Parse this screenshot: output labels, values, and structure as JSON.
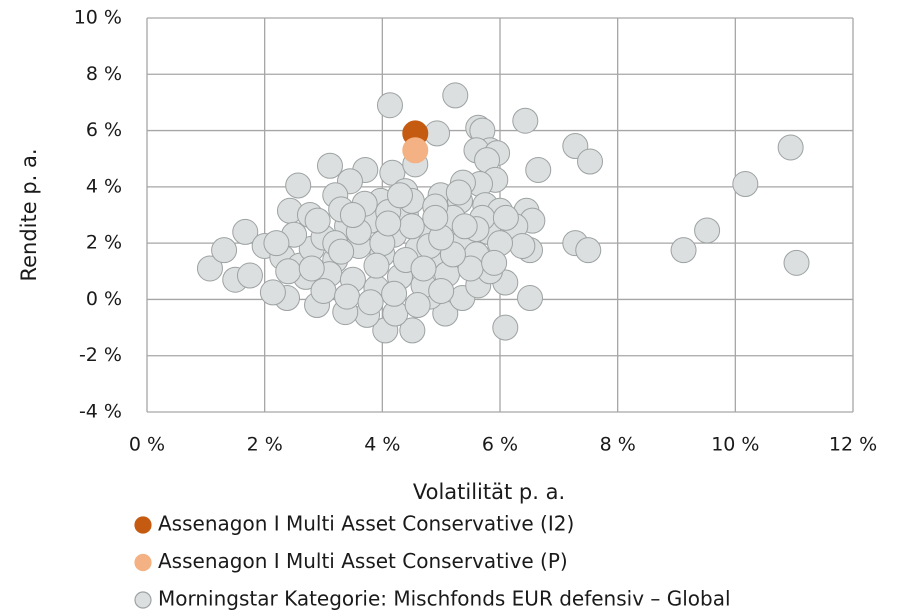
{
  "chart_data": {
    "type": "scatter",
    "xlabel": "Volatilität p. a.",
    "ylabel": "Rendite p. a.",
    "xlim": [
      0,
      12
    ],
    "ylim": [
      -4,
      10
    ],
    "xticks": [
      {
        "value": 0,
        "label": "0 %"
      },
      {
        "value": 2,
        "label": "2 %"
      },
      {
        "value": 4,
        "label": "4 %"
      },
      {
        "value": 6,
        "label": "6 %"
      },
      {
        "value": 8,
        "label": "8 %"
      },
      {
        "value": 10,
        "label": "10 %"
      },
      {
        "value": 12,
        "label": "12 %"
      }
    ],
    "yticks": [
      {
        "value": -4,
        "label": "-4 %"
      },
      {
        "value": -2,
        "label": "-2 %"
      },
      {
        "value": 0,
        "label": "0 %"
      },
      {
        "value": 2,
        "label": "2 %"
      },
      {
        "value": 4,
        "label": "4 %"
      },
      {
        "value": 6,
        "label": "6 %"
      },
      {
        "value": 8,
        "label": "8 %"
      },
      {
        "value": 10,
        "label": "10 %"
      }
    ],
    "grid": true,
    "series": [
      {
        "name": "Morningstar Kategorie: Mischfonds EUR defensiv – Global",
        "color": "#dcdfdf",
        "edgecolor": "#9da2a2",
        "x": [
          4.13,
          5.24,
          4.93,
          6.43,
          5.63,
          5.7,
          5.83,
          5.6,
          5.95,
          5.78,
          7.28,
          7.53,
          6.65,
          3.11,
          3.71,
          2.57,
          3.45,
          4.17,
          4.56,
          5.92,
          5.66,
          6.45,
          5.37,
          10.94,
          10.17,
          9.52,
          9.12,
          11.04,
          7.28,
          7.5,
          6.55,
          6.26,
          6.51,
          6.38,
          6.51,
          6.09,
          6.09,
          4.51,
          4.05,
          5.07,
          4.22,
          3.74,
          3.37,
          2.89,
          2.38,
          2.14,
          1.5,
          1.07,
          1.31,
          1.67,
          1.75,
          2.0,
          5.36,
          5.63,
          5.83,
          4.81,
          2.43,
          2.77,
          3.2,
          3.97,
          4.39,
          4.99,
          5.32,
          5.75,
          6.0,
          2.3,
          2.6,
          2.8,
          3.0,
          3.2,
          3.4,
          3.6,
          3.8,
          4.0,
          4.2,
          4.4,
          4.6,
          4.8,
          5.0,
          5.2,
          5.4,
          5.6,
          5.8,
          3.1,
          3.5,
          3.9,
          4.3,
          4.7,
          5.1,
          5.5,
          2.9,
          3.3,
          3.7,
          4.1,
          4.5,
          4.9,
          5.3,
          5.7,
          2.5,
          2.7,
          3.0,
          3.4,
          3.8,
          4.2,
          4.6,
          5.0,
          2.2,
          2.4,
          3.6,
          4.0,
          4.4,
          4.8,
          5.2,
          5.6,
          6.0,
          6.1,
          5.9,
          3.2,
          3.9,
          4.5,
          5.0,
          4.3,
          3.5,
          2.8,
          4.7,
          5.4,
          4.1,
          3.3,
          4.9
        ],
        "values": [
          6.9,
          7.25,
          5.9,
          6.35,
          6.1,
          6.0,
          5.3,
          5.3,
          5.2,
          4.95,
          5.45,
          4.9,
          4.6,
          4.75,
          4.6,
          4.05,
          4.2,
          4.5,
          4.8,
          4.25,
          4.1,
          3.15,
          4.15,
          5.4,
          4.1,
          2.45,
          1.75,
          1.3,
          2.0,
          1.75,
          2.8,
          2.6,
          1.75,
          1.9,
          0.05,
          -1.0,
          0.6,
          -1.1,
          -1.1,
          -0.5,
          -0.5,
          -0.55,
          -0.45,
          -0.2,
          0.05,
          0.25,
          0.7,
          1.1,
          1.75,
          2.4,
          0.85,
          1.9,
          0.05,
          0.5,
          1.0,
          0.1,
          3.15,
          3.0,
          3.7,
          3.5,
          3.85,
          3.7,
          3.5,
          3.35,
          3.15,
          1.5,
          1.2,
          1.8,
          2.2,
          1.4,
          2.6,
          1.9,
          2.8,
          1.6,
          2.3,
          3.0,
          1.8,
          2.5,
          1.3,
          2.9,
          2.1,
          1.6,
          2.4,
          0.9,
          0.7,
          0.4,
          0.8,
          0.5,
          0.9,
          1.1,
          2.8,
          3.2,
          3.4,
          3.1,
          3.5,
          3.3,
          3.8,
          2.9,
          2.3,
          0.8,
          0.3,
          0.1,
          -0.1,
          0.2,
          -0.2,
          0.3,
          2.0,
          1.0,
          2.4,
          2.0,
          1.4,
          1.9,
          1.6,
          2.5,
          2.0,
          2.9,
          1.3,
          2.0,
          1.2,
          2.6,
          2.2,
          3.7,
          3.0,
          1.1,
          1.1,
          2.6,
          2.7,
          1.7,
          2.9
        ]
      },
      {
        "name": "Assenagon I Multi Asset Conservative (I2)",
        "color": "#c55a11",
        "x": [
          4.56
        ],
        "values": [
          5.9
        ]
      },
      {
        "name": "Assenagon I Multi Asset Conservative (P)",
        "color": "#f4b183",
        "x": [
          4.56
        ],
        "values": [
          5.3
        ]
      }
    ]
  }
}
